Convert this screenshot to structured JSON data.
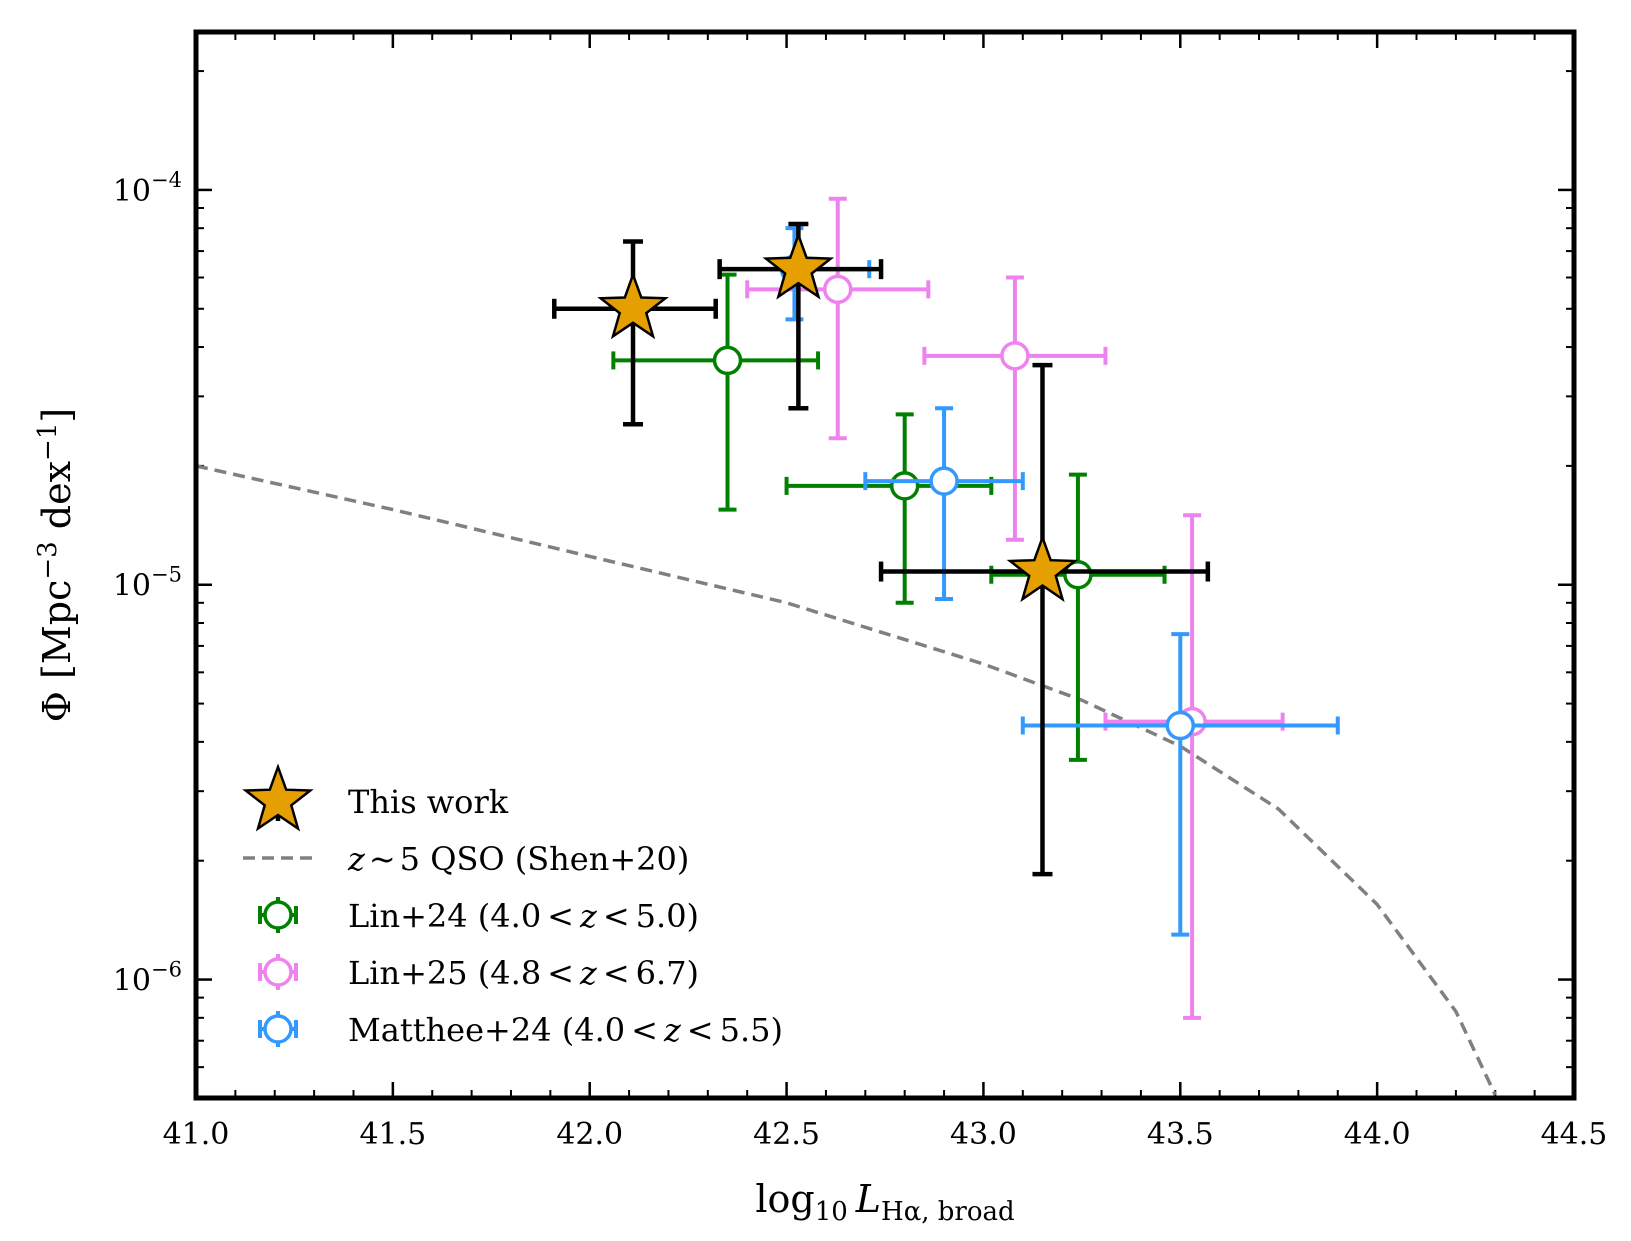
{
  "chart_data": {
    "type": "scatter",
    "xlabel": "log10 L_Hα, broad",
    "xlabel_parts": {
      "prefix": "log",
      "sub1": "10",
      "main": "L",
      "sub2": "Hα, broad"
    },
    "ylabel": "Φ [Mpc−3 dex−1]",
    "ylabel_parts": {
      "phi": "Φ [Mpc",
      "exp1": "−3",
      "mid": " dex",
      "exp2": "−1",
      "close": "]"
    },
    "xlim": [
      41.0,
      44.5
    ],
    "ylim_log10": [
      -6.3,
      -3.6
    ],
    "y_scale": "log",
    "x_ticks": [
      "41.0",
      "41.5",
      "42.0",
      "42.5",
      "43.0",
      "43.5",
      "44.0",
      "44.5"
    ],
    "y_ticks": [
      {
        "value": -6,
        "base": "10",
        "exp": "−6"
      },
      {
        "value": -5,
        "base": "10",
        "exp": "−5"
      },
      {
        "value": -4,
        "base": "10",
        "exp": "−4"
      }
    ],
    "series": [
      {
        "name": "Lin+24",
        "label_text": "Lin+24 (4.0 < z < 5.0)",
        "label_parts": [
          "Lin+24 (4.0",
          "<",
          "z",
          "<",
          "5.0)"
        ],
        "color": "#008000",
        "marker": "open-circle",
        "points": [
          {
            "x": 42.35,
            "xlo": 42.06,
            "xhi": 42.58,
            "y": 3.7e-05,
            "ylo": 1.55e-05,
            "yhi": 6.1e-05
          },
          {
            "x": 42.8,
            "xlo": 42.5,
            "xhi": 43.02,
            "y": 1.78e-05,
            "ylo": 9e-06,
            "yhi": 2.7e-05
          },
          {
            "x": 43.24,
            "xlo": 43.02,
            "xhi": 43.46,
            "y": 1.06e-05,
            "ylo": 3.6e-06,
            "yhi": 1.9e-05
          }
        ]
      },
      {
        "name": "Lin+25",
        "label_text": "Lin+25 (4.8 < z < 6.7)",
        "label_parts": [
          "Lin+25 (4.8",
          "<",
          "z",
          "<",
          "6.7)"
        ],
        "color": "#ee82ee",
        "marker": "open-circle",
        "points": [
          {
            "x": 42.63,
            "xlo": 42.4,
            "xhi": 42.86,
            "y": 5.6e-05,
            "ylo": 2.35e-05,
            "yhi": 9.5e-05
          },
          {
            "x": 43.08,
            "xlo": 42.85,
            "xhi": 43.31,
            "y": 3.8e-05,
            "ylo": 1.3e-05,
            "yhi": 6e-05
          },
          {
            "x": 43.53,
            "xlo": 43.31,
            "xhi": 43.76,
            "y": 4.5e-06,
            "ylo": 8e-07,
            "yhi": 1.5e-05
          }
        ]
      },
      {
        "name": "Matthee+24",
        "label_text": "Matthee+24 (4.0 < z < 5.5)",
        "label_parts": [
          "Matthee+24 (4.0",
          "<",
          "z",
          "<",
          "5.5)"
        ],
        "color": "#3399ff",
        "marker": "open-circle",
        "points": [
          {
            "x": 42.52,
            "xlo": 42.33,
            "xhi": 42.71,
            "y": 6.3e-05,
            "ylo": 4.7e-05,
            "yhi": 8e-05
          },
          {
            "x": 42.9,
            "xlo": 42.7,
            "xhi": 43.1,
            "y": 1.83e-05,
            "ylo": 9.2e-06,
            "yhi": 2.8e-05
          },
          {
            "x": 43.5,
            "xlo": 43.1,
            "xhi": 43.9,
            "y": 4.4e-06,
            "ylo": 1.3e-06,
            "yhi": 7.5e-06
          }
        ]
      },
      {
        "name": "This work",
        "label_text": "This work",
        "color": "#e69f00",
        "edge_color": "#000000",
        "marker": "star",
        "points": [
          {
            "x": 42.11,
            "xlo": 41.91,
            "xhi": 42.32,
            "y": 5e-05,
            "ylo": 2.55e-05,
            "yhi": 7.4e-05
          },
          {
            "x": 42.53,
            "xlo": 42.33,
            "xhi": 42.74,
            "y": 6.3e-05,
            "ylo": 2.8e-05,
            "yhi": 8.2e-05
          },
          {
            "x": 43.15,
            "xlo": 42.74,
            "xhi": 43.57,
            "y": 1.08e-05,
            "ylo": 1.85e-06,
            "yhi": 3.6e-05
          }
        ]
      }
    ],
    "curve": {
      "name": "z ~ 5 QSO (Shen+20)",
      "label_parts": [
        "z",
        "~",
        "5 QSO (Shen+20)"
      ],
      "color": "#808080",
      "style": "dashed",
      "points": [
        [
          41.0,
          2e-05
        ],
        [
          41.5,
          1.55e-05
        ],
        [
          42.0,
          1.18e-05
        ],
        [
          42.5,
          9e-06
        ],
        [
          43.0,
          6.3e-06
        ],
        [
          43.25,
          5.1e-06
        ],
        [
          43.5,
          3.9e-06
        ],
        [
          43.75,
          2.7e-06
        ],
        [
          44.0,
          1.55e-06
        ],
        [
          44.2,
          8.3e-07
        ],
        [
          44.3,
          5.1e-07
        ]
      ]
    },
    "legend": {
      "location": "lower-left",
      "order": [
        "This work",
        "curve",
        "Lin+24",
        "Lin+25",
        "Matthee+24"
      ]
    }
  }
}
